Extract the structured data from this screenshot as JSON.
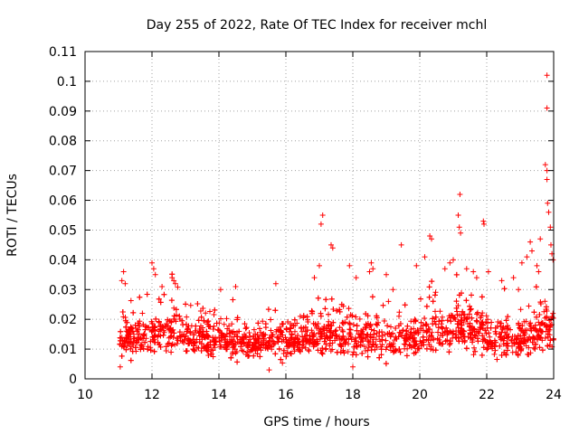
{
  "chart_data": {
    "type": "scatter",
    "title": "Day 255 of 2022, Rate Of TEC Index for receiver mchl",
    "xlabel": "GPS time / hours",
    "ylabel": "ROTI / TECUs",
    "xlim": [
      10,
      24
    ],
    "ylim": [
      0,
      0.11
    ],
    "grid": true,
    "marker": "+",
    "marker_color": "#ff0000",
    "xticks": [
      10,
      12,
      14,
      16,
      18,
      20,
      22,
      24
    ],
    "xtick_labels": [
      "10",
      "12",
      "14",
      "16",
      "18",
      "20",
      "22",
      "24"
    ],
    "yticks": [
      0,
      0.01,
      0.02,
      0.03,
      0.04,
      0.05,
      0.06,
      0.07,
      0.08,
      0.09,
      0.1,
      0.11
    ],
    "ytick_labels": [
      "0",
      "0.01",
      "0.02",
      "0.03",
      "0.04",
      "0.05",
      "0.06",
      "0.07",
      "0.08",
      "0.09",
      "0.1",
      "0.11"
    ],
    "series": [
      {
        "name": "ROTI",
        "generated_density": {
          "x_range": [
            11.0,
            24.0
          ],
          "count": 2600,
          "base_mean": 0.01,
          "base_spread": 0.006
        },
        "notable_points": [
          [
            23.8,
            0.102
          ],
          [
            23.8,
            0.091
          ],
          [
            23.75,
            0.072
          ],
          [
            23.8,
            0.07
          ],
          [
            23.8,
            0.067
          ],
          [
            23.82,
            0.059
          ],
          [
            23.85,
            0.056
          ],
          [
            23.9,
            0.051
          ],
          [
            21.2,
            0.062
          ],
          [
            21.15,
            0.055
          ],
          [
            21.18,
            0.051
          ],
          [
            21.22,
            0.049
          ],
          [
            21.9,
            0.053
          ],
          [
            21.92,
            0.052
          ],
          [
            20.3,
            0.048
          ],
          [
            20.35,
            0.047
          ],
          [
            17.1,
            0.055
          ],
          [
            17.05,
            0.052
          ],
          [
            17.35,
            0.045
          ],
          [
            17.4,
            0.044
          ],
          [
            19.45,
            0.045
          ],
          [
            23.3,
            0.046
          ],
          [
            23.35,
            0.043
          ],
          [
            23.6,
            0.047
          ],
          [
            11.15,
            0.036
          ],
          [
            11.1,
            0.033
          ],
          [
            11.2,
            0.032
          ],
          [
            12.0,
            0.039
          ],
          [
            12.05,
            0.037
          ],
          [
            12.1,
            0.035
          ],
          [
            12.3,
            0.031
          ],
          [
            12.6,
            0.034
          ],
          [
            12.65,
            0.033
          ],
          [
            12.7,
            0.032
          ],
          [
            14.05,
            0.03
          ],
          [
            14.5,
            0.031
          ],
          [
            15.7,
            0.032
          ],
          [
            16.85,
            0.034
          ],
          [
            17.0,
            0.038
          ],
          [
            17.9,
            0.038
          ],
          [
            18.55,
            0.039
          ],
          [
            18.6,
            0.037
          ],
          [
            18.5,
            0.036
          ],
          [
            18.1,
            0.034
          ],
          [
            19.0,
            0.035
          ],
          [
            19.2,
            0.03
          ],
          [
            19.9,
            0.038
          ],
          [
            20.15,
            0.041
          ],
          [
            20.75,
            0.037
          ],
          [
            20.9,
            0.039
          ],
          [
            21.0,
            0.04
          ],
          [
            21.4,
            0.037
          ],
          [
            21.6,
            0.036
          ],
          [
            21.7,
            0.034
          ],
          [
            22.05,
            0.036
          ],
          [
            22.45,
            0.033
          ],
          [
            22.8,
            0.034
          ],
          [
            22.95,
            0.03
          ],
          [
            23.05,
            0.039
          ],
          [
            23.2,
            0.041
          ],
          [
            23.5,
            0.038
          ],
          [
            23.55,
            0.036
          ],
          [
            23.95,
            0.042
          ],
          [
            23.92,
            0.045
          ],
          [
            23.98,
            0.04
          ],
          [
            15.5,
            0.003
          ],
          [
            11.05,
            0.004
          ],
          [
            18.0,
            0.004
          ]
        ]
      }
    ]
  }
}
